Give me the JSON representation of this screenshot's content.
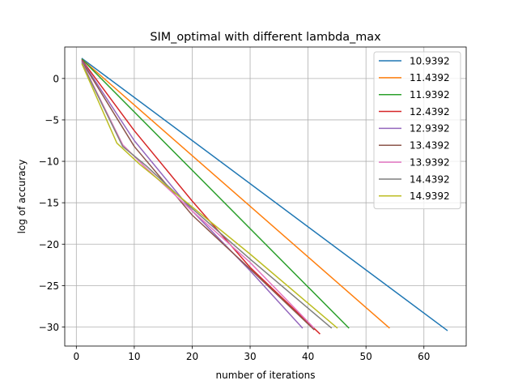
{
  "chart_data": {
    "type": "line",
    "title": "SIM_optimal with different lambda_max",
    "xlabel": "number of iterations",
    "ylabel": "log of accuracy",
    "xlim": [
      -2,
      67.3
    ],
    "ylim": [
      -32.3,
      3.8
    ],
    "xticks": [
      0,
      10,
      20,
      30,
      40,
      50,
      60
    ],
    "yticks": [
      0,
      -5,
      -10,
      -15,
      -20,
      -25,
      -30
    ],
    "grid": true,
    "legend_position": "top-right",
    "series": [
      {
        "name": "10.9392",
        "color": "#1f77b4",
        "points": [
          [
            1,
            2.4
          ],
          [
            64,
            -30.4
          ]
        ]
      },
      {
        "name": "11.4392",
        "color": "#ff7f0e",
        "points": [
          [
            1,
            2.3
          ],
          [
            54,
            -30.1
          ]
        ]
      },
      {
        "name": "11.9392",
        "color": "#2ca02c",
        "points": [
          [
            1,
            2.3
          ],
          [
            47,
            -30.1
          ]
        ]
      },
      {
        "name": "12.4392",
        "color": "#d62728",
        "points": [
          [
            1,
            2.2
          ],
          [
            10,
            -6.3
          ],
          [
            20,
            -14.8
          ],
          [
            30,
            -22.8
          ],
          [
            42,
            -30.8
          ]
        ]
      },
      {
        "name": "12.9392",
        "color": "#9467bd",
        "points": [
          [
            1,
            2.1
          ],
          [
            10,
            -7.5
          ],
          [
            20,
            -16.0
          ],
          [
            30,
            -23.2
          ],
          [
            39,
            -30.1
          ]
        ]
      },
      {
        "name": "13.4392",
        "color": "#8c564b",
        "points": [
          [
            1,
            2.0
          ],
          [
            10,
            -8.2
          ],
          [
            20,
            -16.5
          ],
          [
            30,
            -23.0
          ],
          [
            41,
            -30.3
          ]
        ]
      },
      {
        "name": "13.9392",
        "color": "#e377c2",
        "points": [
          [
            1,
            1.9
          ],
          [
            8,
            -8.0
          ],
          [
            12,
            -10.8
          ],
          [
            20,
            -16.0
          ],
          [
            30,
            -22.2
          ],
          [
            41,
            -30.1
          ]
        ]
      },
      {
        "name": "14.4392",
        "color": "#7f7f7f",
        "points": [
          [
            1,
            1.8
          ],
          [
            8,
            -8.2
          ],
          [
            12,
            -10.5
          ],
          [
            20,
            -15.7
          ],
          [
            30,
            -21.8
          ],
          [
            44,
            -30.1
          ]
        ]
      },
      {
        "name": "14.9392",
        "color": "#bcbd22",
        "points": [
          [
            1,
            1.7
          ],
          [
            7,
            -7.8
          ],
          [
            11,
            -10.4
          ],
          [
            20,
            -15.5
          ],
          [
            30,
            -21.2
          ],
          [
            45,
            -30.1
          ]
        ]
      }
    ]
  }
}
